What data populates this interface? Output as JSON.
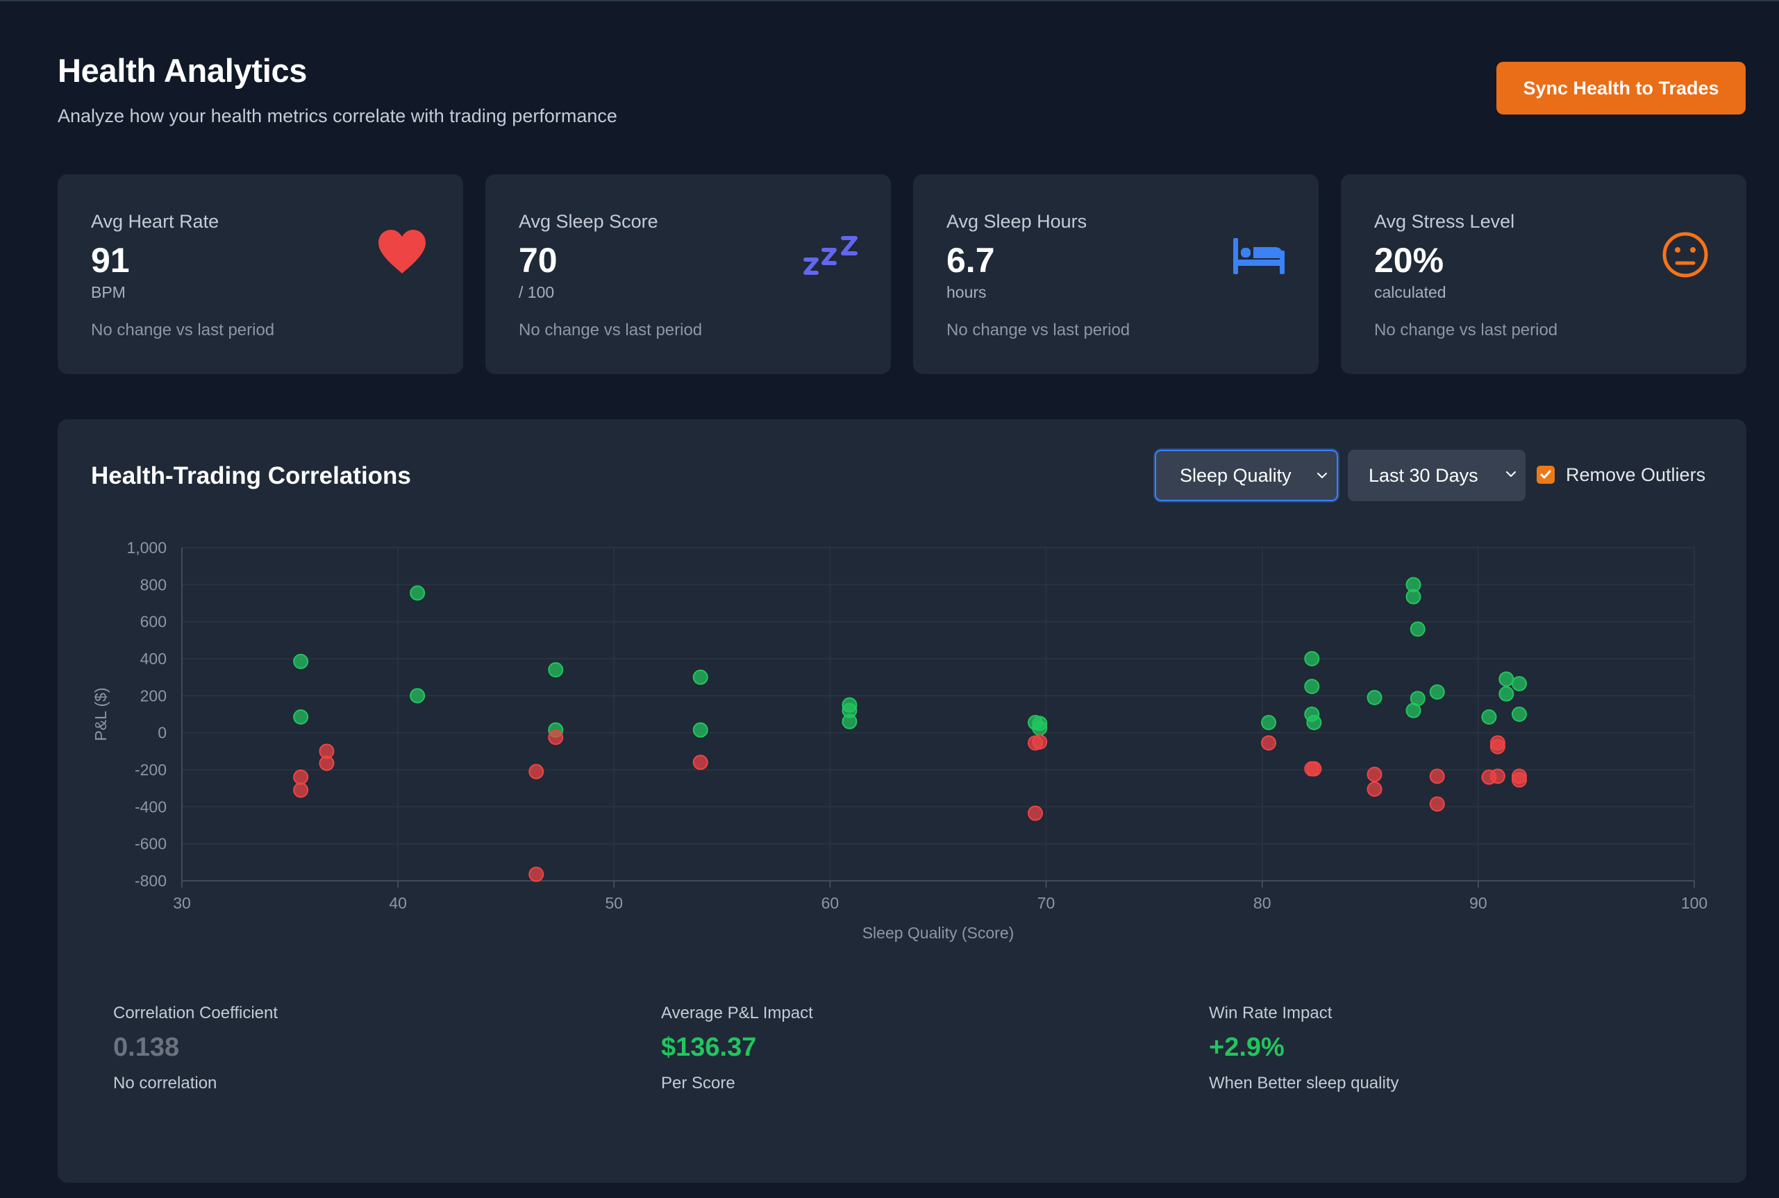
{
  "header": {
    "title": "Health Analytics",
    "subtitle": "Analyze how your health metrics correlate with trading performance",
    "sync_button": "Sync Health to Trades"
  },
  "cards": [
    {
      "label": "Avg Heart Rate",
      "value": "91",
      "unit": "BPM",
      "change": "No change vs last period",
      "icon": "heart-icon"
    },
    {
      "label": "Avg Sleep Score",
      "value": "70",
      "unit": "/ 100",
      "change": "No change vs last period",
      "icon": "sleep-zzz-icon"
    },
    {
      "label": "Avg Sleep Hours",
      "value": "6.7",
      "unit": "hours",
      "change": "No change vs last period",
      "icon": "bed-icon"
    },
    {
      "label": "Avg Stress Level",
      "value": "20%",
      "unit": "calculated",
      "change": "No change vs last period",
      "icon": "neutral-face-icon"
    }
  ],
  "correlations": {
    "title": "Health-Trading Correlations",
    "metric_select": "Sleep Quality",
    "period_select": "Last 30 Days",
    "remove_outliers_label": "Remove Outliers",
    "remove_outliers_checked": true
  },
  "colors": {
    "background": "#111827",
    "card": "#1f2937",
    "accent": "#ea6d17",
    "positive": "#22c55e",
    "negative": "#ef4444",
    "heart": "#ef4444",
    "sleep": "#6366f1",
    "bed": "#3b82f6",
    "stress": "#f97316"
  },
  "chart_data": {
    "type": "scatter",
    "title": "",
    "xlabel": "Sleep Quality (Score)",
    "ylabel": "P&L ($)",
    "xlim": [
      30,
      100
    ],
    "ylim": [
      -800,
      1000
    ],
    "xticks": [
      30,
      40,
      50,
      60,
      70,
      80,
      90,
      100
    ],
    "yticks": [
      1000,
      800,
      600,
      400,
      200,
      0,
      -200,
      -400,
      -600,
      -800
    ],
    "ytick_labels": [
      "1,000",
      "800",
      "600",
      "400",
      "200",
      "0",
      "-200",
      "-400",
      "-600",
      "-800"
    ],
    "grid": true,
    "series": [
      {
        "name": "Profit",
        "color": "#22c55e",
        "points": [
          [
            35.5,
            385
          ],
          [
            35.5,
            85
          ],
          [
            40.9,
            755
          ],
          [
            40.9,
            200
          ],
          [
            47.3,
            340
          ],
          [
            47.3,
            15
          ],
          [
            54.0,
            300
          ],
          [
            54.0,
            15
          ],
          [
            60.9,
            150
          ],
          [
            60.9,
            120
          ],
          [
            60.9,
            60
          ],
          [
            69.5,
            55
          ],
          [
            69.7,
            50
          ],
          [
            69.7,
            25
          ],
          [
            80.3,
            55
          ],
          [
            82.3,
            400
          ],
          [
            82.3,
            250
          ],
          [
            82.3,
            100
          ],
          [
            82.4,
            55
          ],
          [
            85.2,
            190
          ],
          [
            87.0,
            800
          ],
          [
            87.0,
            735
          ],
          [
            87.2,
            560
          ],
          [
            87.2,
            185
          ],
          [
            87.0,
            120
          ],
          [
            88.1,
            220
          ],
          [
            90.5,
            85
          ],
          [
            91.3,
            290
          ],
          [
            91.3,
            210
          ],
          [
            91.9,
            265
          ],
          [
            91.9,
            100
          ]
        ]
      },
      {
        "name": "Loss",
        "color": "#ef4444",
        "points": [
          [
            35.5,
            -240
          ],
          [
            35.5,
            -310
          ],
          [
            36.7,
            -100
          ],
          [
            36.7,
            -165
          ],
          [
            46.4,
            -210
          ],
          [
            47.3,
            -25
          ],
          [
            46.4,
            -765
          ],
          [
            54.0,
            -160
          ],
          [
            69.5,
            -55
          ],
          [
            69.7,
            -50
          ],
          [
            69.5,
            -435
          ],
          [
            80.3,
            -55
          ],
          [
            82.3,
            -195
          ],
          [
            82.4,
            -195
          ],
          [
            85.2,
            -225
          ],
          [
            85.2,
            -305
          ],
          [
            88.1,
            -235
          ],
          [
            88.1,
            -385
          ],
          [
            90.5,
            -240
          ],
          [
            90.9,
            -235
          ],
          [
            90.9,
            -55
          ],
          [
            90.9,
            -75
          ],
          [
            91.9,
            -235
          ],
          [
            91.9,
            -255
          ]
        ]
      }
    ]
  },
  "stats": [
    {
      "label": "Correlation Coefficient",
      "value": "0.138",
      "desc": "No correlation",
      "color": "#6b7280"
    },
    {
      "label": "Average P&L Impact",
      "value": "$136.37",
      "desc": "Per Score",
      "color": "#22c55e"
    },
    {
      "label": "Win Rate Impact",
      "value": "+2.9%",
      "desc": "When Better sleep quality",
      "color": "#22c55e"
    }
  ]
}
